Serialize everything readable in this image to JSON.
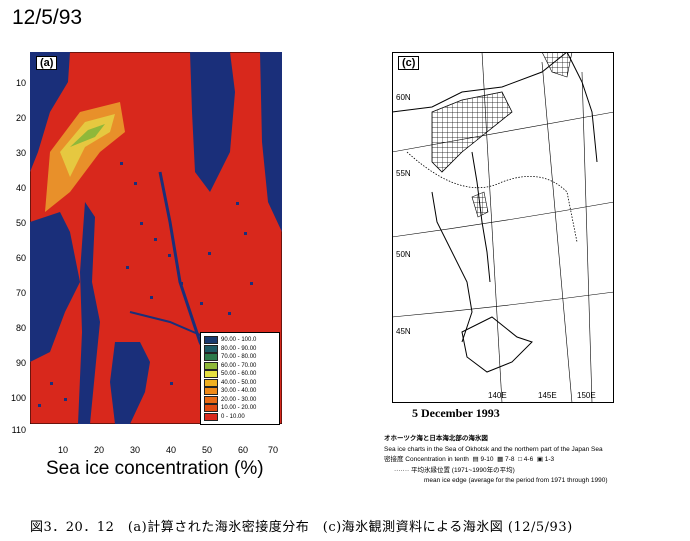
{
  "date_label": "12/5/93",
  "panel_a": {
    "label": "(a)",
    "y_ticks": [
      "10",
      "20",
      "30",
      "40",
      "50",
      "60",
      "70",
      "80",
      "90",
      "100",
      "110"
    ],
    "x_ticks": [
      "10",
      "20",
      "30",
      "40",
      "50",
      "60",
      "70"
    ],
    "xlabel": "Sea ice concentration (%)",
    "legend": [
      {
        "range": "90.00 - 100.0",
        "color": "#1a3a6e"
      },
      {
        "range": "80.00 - 90.00",
        "color": "#1e5a64"
      },
      {
        "range": "70.00 - 80.00",
        "color": "#2c7a4a"
      },
      {
        "range": "60.00 - 70.00",
        "color": "#8fb83a"
      },
      {
        "range": "50.00 - 60.00",
        "color": "#e6e040"
      },
      {
        "range": "40.00 - 50.00",
        "color": "#f0b020"
      },
      {
        "range": "30.00 - 40.00",
        "color": "#f08a18"
      },
      {
        "range": "20.00 - 30.00",
        "color": "#e86a14"
      },
      {
        "range": "10.00 - 20.00",
        "color": "#e04a10"
      },
      {
        "range": "0 - 10.00",
        "color": "#d8281c"
      }
    ]
  },
  "panel_c": {
    "label": "(c)",
    "lat_labels": [
      "60N",
      "55N",
      "50N",
      "45N"
    ],
    "lon_labels": [
      "140E",
      "145E",
      "150E"
    ],
    "caption": "5 December 1993"
  },
  "legend_c": {
    "title_jp": "オホーツク海と日本海北部の海氷図",
    "title_en": "Sea ice charts in the Sea of Okhotsk and the northern part of the Japan Sea",
    "conc_label": "密接度 Concentration in tenth",
    "conc_items": [
      "9-10",
      "7-8",
      "4-6",
      "1-3"
    ],
    "mean_jp": "平均氷縁位置 (1971~1990年の平均)",
    "mean_en": "mean ice edge (average for the period from 1971 through 1990)"
  },
  "figure_caption": "図3．20．12　(a)計算された海氷密接度分布　(c)海氷観測資料による海氷図 (12/5/93)"
}
